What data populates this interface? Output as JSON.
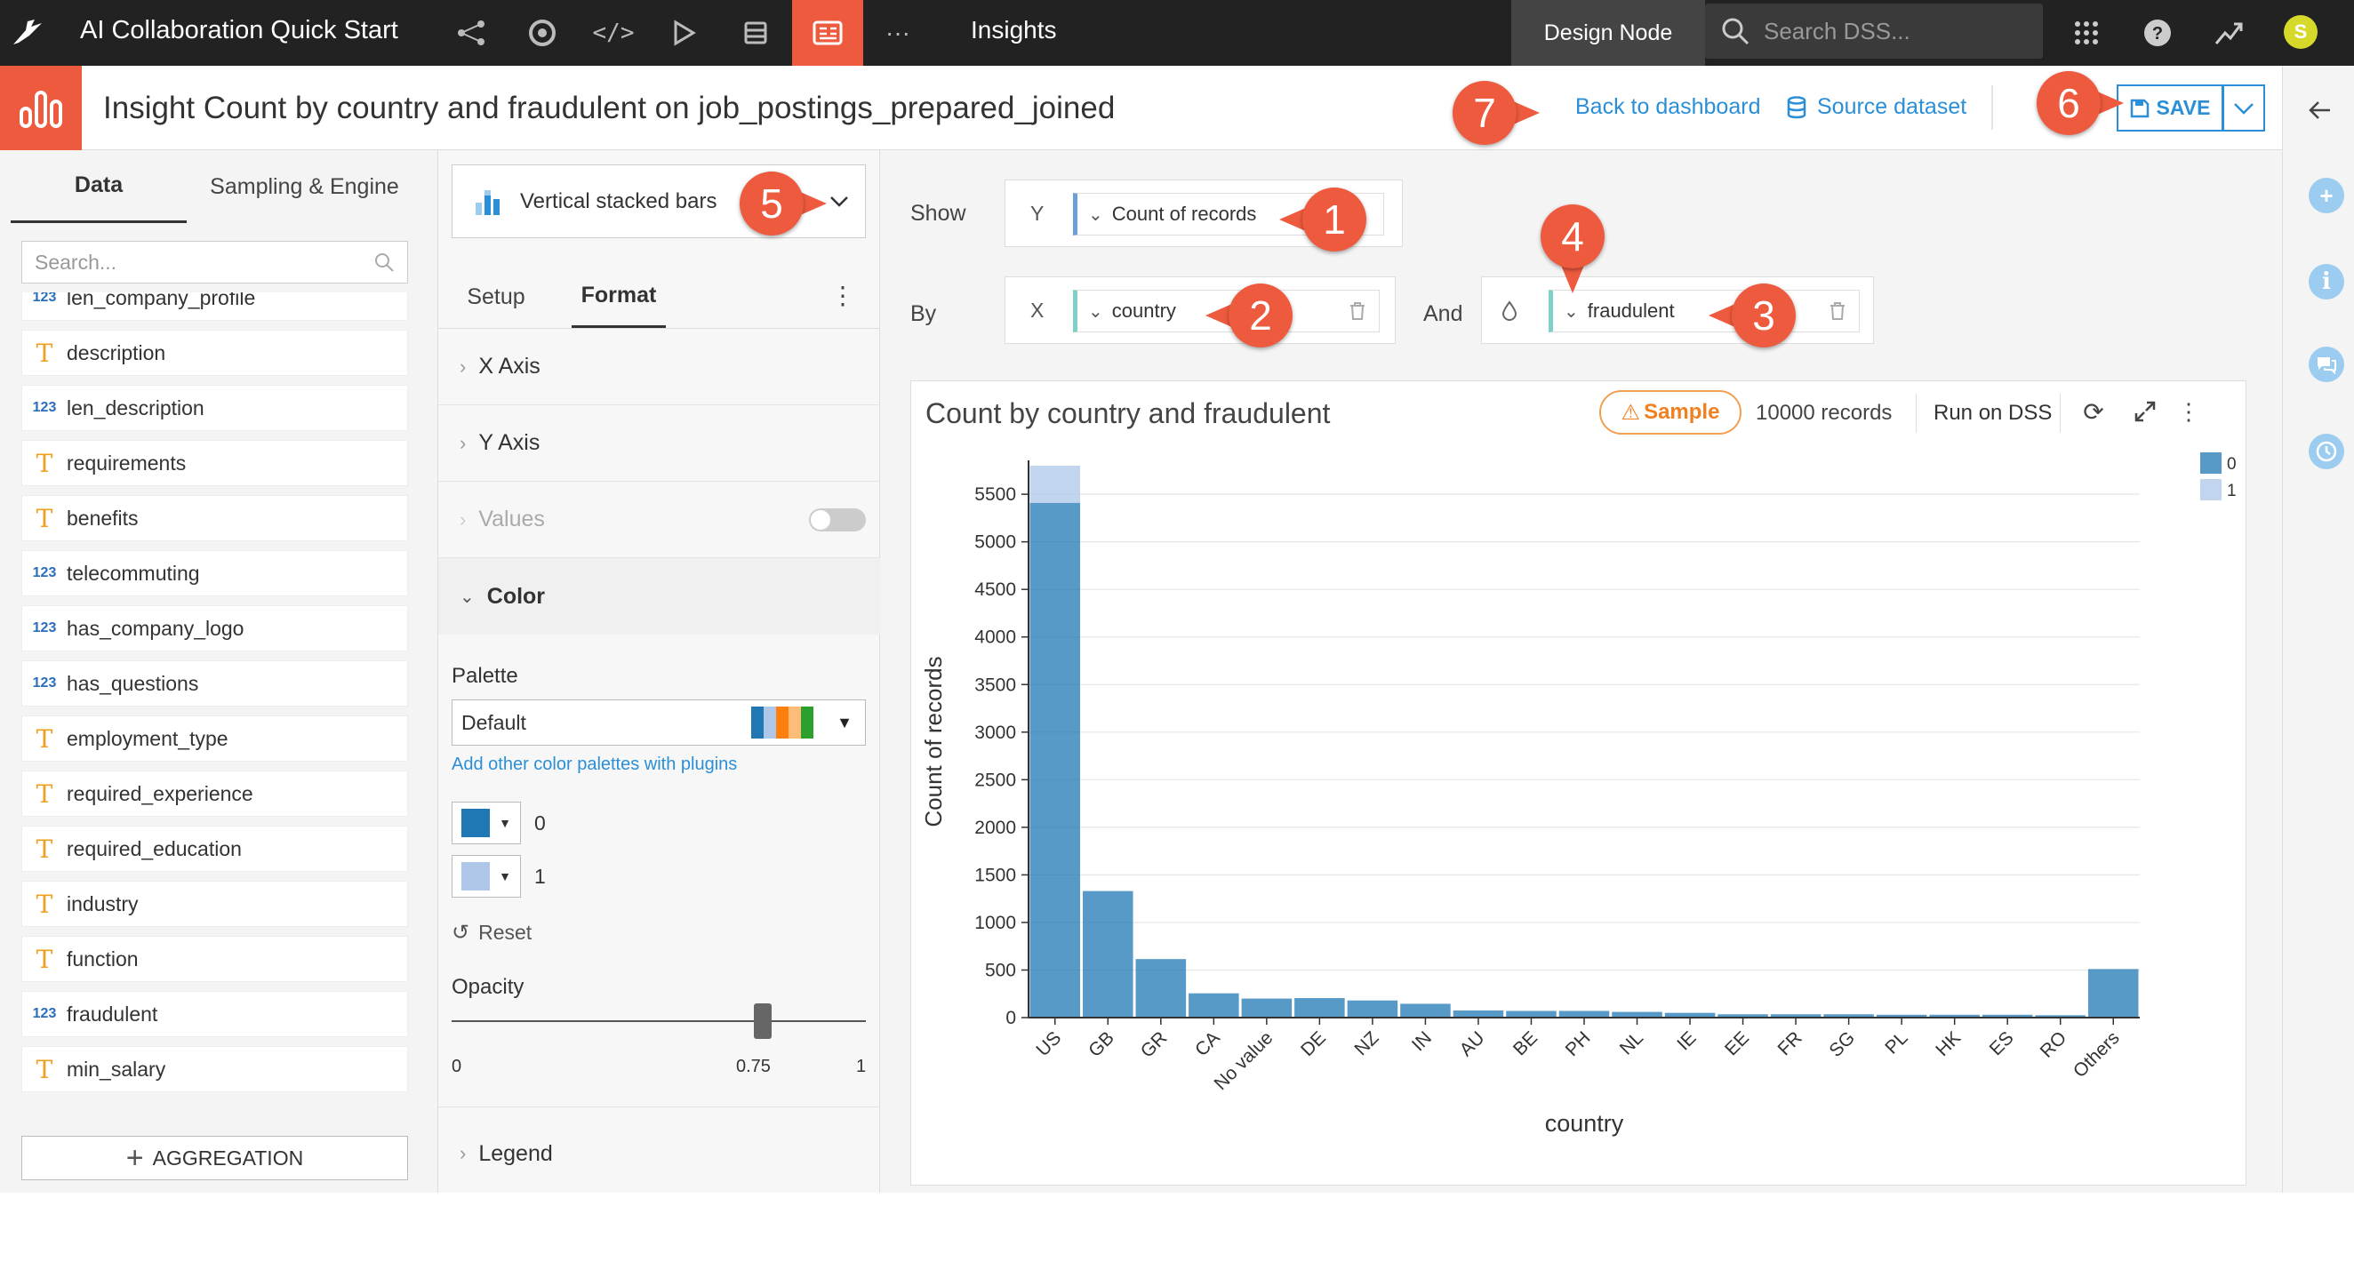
{
  "topbar": {
    "project_title": "AI Collaboration Quick Start",
    "active_section": "Insights",
    "node_label": "Design Node",
    "search_placeholder": "Search DSS...",
    "more_label": "···",
    "avatar_letter": "S"
  },
  "insight": {
    "title": "Insight Count by country and fraudulent on job_postings_prepared_joined",
    "back_link": "Back to dashboard",
    "source_link": "Source dataset",
    "save_label": "SAVE"
  },
  "left": {
    "tabs": [
      "Data",
      "Sampling & Engine"
    ],
    "search_placeholder": "Search...",
    "fields": [
      {
        "type": "num",
        "name": "len_company_profile"
      },
      {
        "type": "text",
        "name": "description"
      },
      {
        "type": "num",
        "name": "len_description"
      },
      {
        "type": "text",
        "name": "requirements"
      },
      {
        "type": "text",
        "name": "benefits"
      },
      {
        "type": "num",
        "name": "telecommuting"
      },
      {
        "type": "num",
        "name": "has_company_logo"
      },
      {
        "type": "num",
        "name": "has_questions"
      },
      {
        "type": "text",
        "name": "employment_type"
      },
      {
        "type": "text",
        "name": "required_experience"
      },
      {
        "type": "text",
        "name": "required_education"
      },
      {
        "type": "text",
        "name": "industry"
      },
      {
        "type": "text",
        "name": "function"
      },
      {
        "type": "num",
        "name": "fraudulent"
      },
      {
        "type": "text",
        "name": "min_salary"
      }
    ],
    "num_badge": "123",
    "text_badge": "T",
    "aggregation_label": "AGGREGATION"
  },
  "mid": {
    "chart_type": "Vertical stacked bars",
    "tabs": [
      "Setup",
      "Format"
    ],
    "sections": {
      "x_axis": "X Axis",
      "y_axis": "Y Axis",
      "values": "Values",
      "color": "Color",
      "legend": "Legend"
    },
    "palette_label": "Palette",
    "palette_value": "Default",
    "palette_link": "Add other color palettes with plugins",
    "swatches": [
      {
        "label": "0",
        "color": "#1f77b4"
      },
      {
        "label": "1",
        "color": "#aec7e8"
      }
    ],
    "reset_label": "Reset",
    "opacity_label": "Opacity",
    "opacity_min": "0",
    "opacity_value": "0.75",
    "opacity_max": "1",
    "opacity_level": 0.75
  },
  "shelf": {
    "show_label": "Show",
    "by_label": "By",
    "and_label": "And",
    "y_axis_letter": "Y",
    "x_axis_letter": "X",
    "y_measure": "Count of records",
    "x_dimension": "country",
    "color_dimension": "fraudulent"
  },
  "chart_header": {
    "title": "Count by country and fraudulent",
    "sample_label": "Sample",
    "records_label": "10000 records",
    "run_label": "Run on DSS"
  },
  "annotations": [
    "1",
    "2",
    "3",
    "4",
    "5",
    "6",
    "7"
  ],
  "chart_data": {
    "type": "bar",
    "stacked": true,
    "categories": [
      "US",
      "GB",
      "GR",
      "CA",
      "No value",
      "DE",
      "NZ",
      "IN",
      "AU",
      "BE",
      "PH",
      "NL",
      "IE",
      "EE",
      "FR",
      "SG",
      "PL",
      "HK",
      "ES",
      "RO",
      "Others"
    ],
    "series": [
      {
        "name": "0",
        "color": "#1f77b4",
        "values": [
          5410,
          1330,
          615,
          255,
          200,
          205,
          180,
          145,
          75,
          70,
          70,
          60,
          50,
          35,
          35,
          35,
          30,
          30,
          30,
          25,
          510
        ]
      },
      {
        "name": "1",
        "color": "#aec7e8",
        "values": [
          390,
          0,
          0,
          0,
          0,
          0,
          0,
          0,
          0,
          0,
          0,
          0,
          0,
          0,
          0,
          0,
          0,
          0,
          0,
          0,
          0
        ]
      }
    ],
    "xlabel": "country",
    "ylabel": "Count of records",
    "ylim": [
      0,
      5800
    ],
    "yticks": [
      0,
      500,
      1000,
      1500,
      2000,
      2500,
      3000,
      3500,
      4000,
      4500,
      5000,
      5500
    ],
    "grid": true,
    "legend": "top-right"
  }
}
